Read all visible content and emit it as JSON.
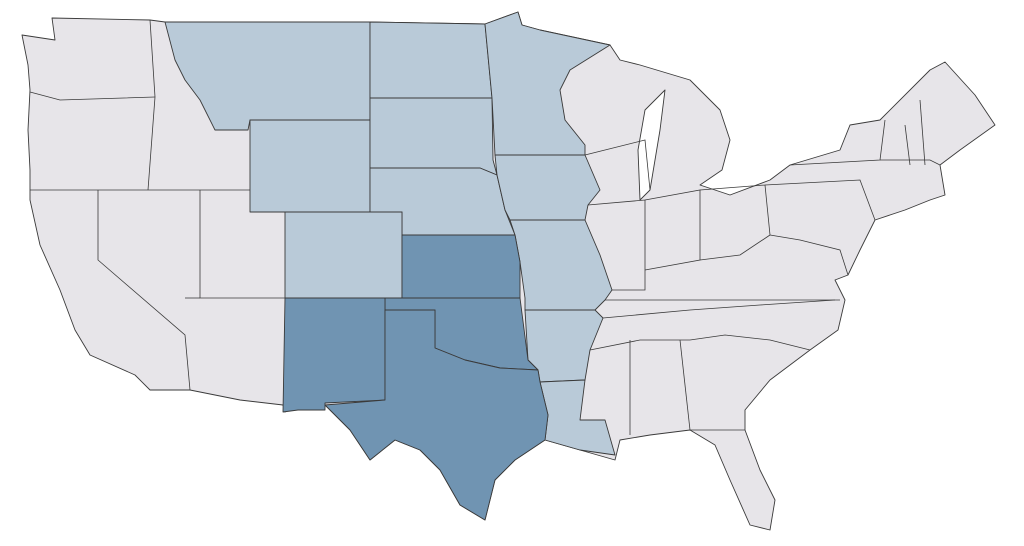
{
  "map": {
    "fills": {
      "base": "#e7e5e9",
      "light": "#b9cad8",
      "dark": "#7094b2"
    },
    "stroke": "#3a3a3a",
    "background": "#ffffff"
  }
}
